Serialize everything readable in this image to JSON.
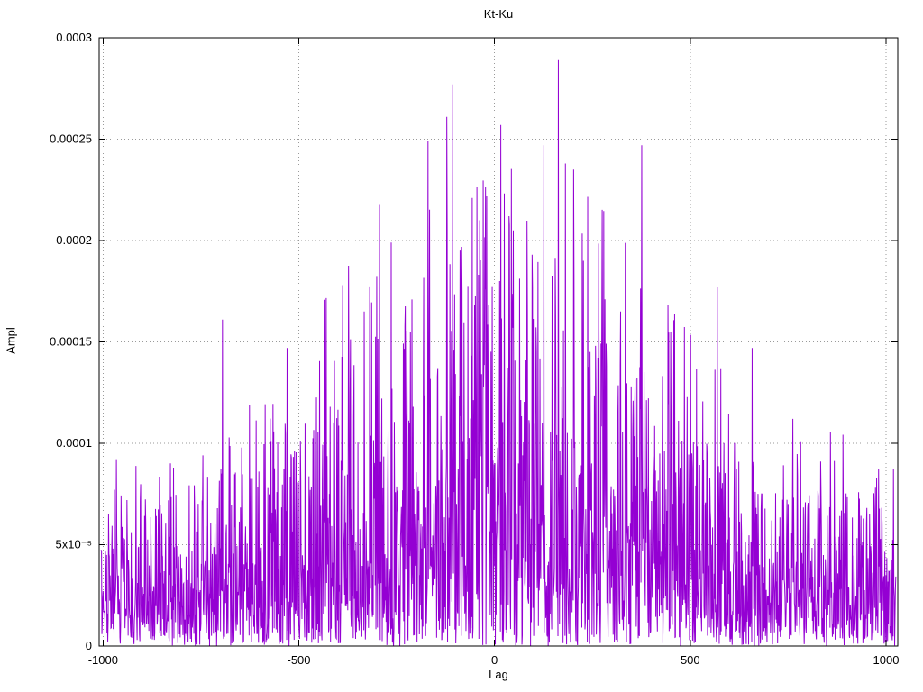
{
  "title": "Kt-Ku",
  "chart_data": {
    "type": "line",
    "title": "Kt-Ku",
    "xlabel": "Lag",
    "ylabel": "Ampl",
    "xlim": [
      -1010,
      1030
    ],
    "ylim": [
      0,
      0.0003
    ],
    "grid": true,
    "legend": "none",
    "colors": {
      "border": "#000000",
      "grid": "#9a9a9a",
      "background": "#ffffff"
    },
    "x_ticks": [
      {
        "value": -1000,
        "label": "-1000"
      },
      {
        "value": -500,
        "label": "-500"
      },
      {
        "value": 0,
        "label": "0"
      },
      {
        "value": 500,
        "label": "500"
      },
      {
        "value": 1000,
        "label": "1000"
      }
    ],
    "y_ticks": [
      {
        "value": 0,
        "label": "0"
      },
      {
        "value": 5e-05,
        "label": "5x10⁻⁵"
      },
      {
        "value": 0.0001,
        "label": "0.0001"
      },
      {
        "value": 0.00015,
        "label": "0.00015"
      },
      {
        "value": 0.0002,
        "label": "0.0002"
      },
      {
        "value": 0.00025,
        "label": "0.00025"
      },
      {
        "value": 0.0003,
        "label": "0.0003"
      }
    ],
    "series": [
      {
        "name": "Kt-Ku",
        "color": "#9400d3",
        "style": "noisy-impulse-line",
        "points_estimated": true,
        "synthesis": {
          "seed": 1337,
          "x_start": -1005,
          "x_end": 1025,
          "step": 1,
          "noise_base": 5.5e-05,
          "noise_peak": 9e-05,
          "gauss_width": 480,
          "exp_scale": 0.5,
          "soft_knee": 2.2,
          "knee_ratio": 0.45,
          "clip": 3.6
        },
        "notable_peaks": [
          [
            -820,
            8.8e-05
          ],
          [
            -695,
            0.000161
          ],
          [
            -530,
            0.000147
          ],
          [
            -388,
            0.000178
          ],
          [
            -333,
            0.000165
          ],
          [
            -294,
            0.000218
          ],
          [
            -264,
            0.000199
          ],
          [
            -181,
            0.000182
          ],
          [
            -170,
            0.000249
          ],
          [
            -122,
            0.000261
          ],
          [
            -108,
            0.000277
          ],
          [
            -57,
            0.000221
          ],
          [
            -20,
            0.000222
          ],
          [
            16,
            0.000257
          ],
          [
            37,
            0.000212
          ],
          [
            48,
            0.000205
          ],
          [
            96,
            0.000193
          ],
          [
            126,
            0.000247
          ],
          [
            163,
            0.000289
          ],
          [
            181,
            0.000238
          ],
          [
            202,
            0.000235
          ],
          [
            227,
            0.00019
          ],
          [
            282,
            0.000171
          ],
          [
            376,
            0.000247
          ],
          [
            450,
            0.000155
          ],
          [
            569,
            0.000177
          ],
          [
            658,
            0.000147
          ],
          [
            782,
            0.000101
          ],
          [
            833,
            9.1e-05
          ]
        ]
      }
    ]
  }
}
